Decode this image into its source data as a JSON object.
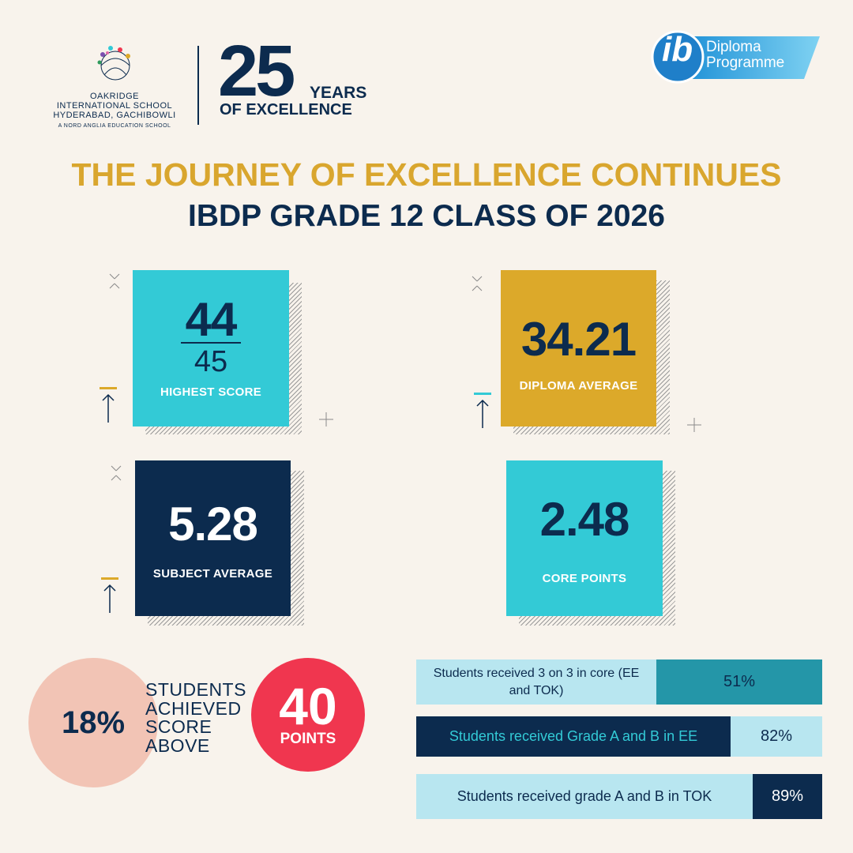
{
  "header": {
    "school": [
      "OAKRIDGE",
      "INTERNATIONAL SCHOOL",
      "HYDERABAD, GACHIBOWLI"
    ],
    "tagline": "A NORD ANGLIA EDUCATION SCHOOL",
    "anniversary_number": "25",
    "anniversary_years": "YEARS",
    "anniversary_text": "OF EXCELLENCE",
    "ib_logo": "ib",
    "programme": [
      "Diploma",
      "Programme"
    ]
  },
  "title": "THE JOURNEY OF EXCELLENCE CONTINUES",
  "subtitle": "IBDP GRADE 12 CLASS OF 2026",
  "stats": [
    {
      "value": "44",
      "out_of": "45",
      "label": "HIGHEST SCORE"
    },
    {
      "value": "34.21",
      "label": "DIPLOMA AVERAGE"
    },
    {
      "value": "5.28",
      "label": "SUBJECT AVERAGE"
    },
    {
      "value": "2.48",
      "label": "CORE POINTS"
    }
  ],
  "achievement": {
    "percent": "18%",
    "text": [
      "STUDENTS",
      "ACHIEVED",
      "SCORE",
      "ABOVE"
    ],
    "points": "40",
    "points_label": "POINTS"
  },
  "results": [
    {
      "label": "Students received 3 on 3 in core (EE and TOK)",
      "value": "51%"
    },
    {
      "label": "Students received Grade A and B in EE",
      "value": "82%"
    },
    {
      "label": "Students received grade A and B in TOK",
      "value": "89%"
    }
  ]
}
